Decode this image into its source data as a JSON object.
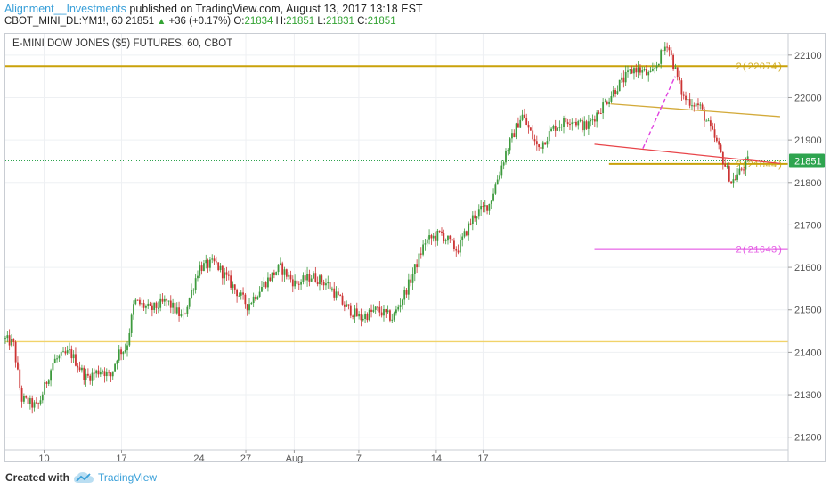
{
  "header": {
    "author": "Alignment__Investments",
    "published_text": "published on TradingView.com, August 13, 2017 13:18 EST",
    "symbol": "CBOT_MINI_DL:YM1!, 60",
    "last": "21851",
    "change": "+36 (+0.17%)",
    "o_label": "O:",
    "o_value": "21834",
    "h_label": "H:",
    "h_value": "21851",
    "l_label": "L:",
    "l_value": "21831",
    "c_label": "C:",
    "c_value": "21851"
  },
  "subtitle": "E-MINI DOW JONES ($5) FUTURES, 60, CBOT",
  "footer": {
    "created_with": "Created with",
    "brand": "TradingView",
    "logo_icon": "tradingview-cloud-icon"
  },
  "colors": {
    "up_candle": "#3d9a3d",
    "down_candle": "#cc3333",
    "horizontal_gold": "#caa20a",
    "horizontal_light": "#f1d36a",
    "magenta": "#e040e0",
    "trend_red": "#e8454a",
    "trend_gold": "#d3aa3a",
    "price_tag": "#2ea44f",
    "grid": "#eef0f3"
  },
  "chart_data": {
    "type": "candlestick",
    "title": "E-MINI DOW JONES ($5) FUTURES, 60, CBOT",
    "y_axis": {
      "position": "right",
      "ylim": [
        21170,
        22150
      ],
      "ticks": [
        21200,
        21300,
        21400,
        21500,
        21600,
        21700,
        21800,
        21900,
        22000,
        22100
      ]
    },
    "x_axis": {
      "tick_labels": [
        "10",
        "17",
        "24",
        "27",
        "Aug",
        "7",
        "14",
        "17"
      ]
    },
    "grid": true,
    "current_price": {
      "value": 21851,
      "label": "21851"
    },
    "series_path": [
      [
        0.0,
        21430
      ],
      [
        0.5,
        21420
      ],
      [
        1.0,
        21290
      ],
      [
        2.0,
        21270
      ],
      [
        3.0,
        21380
      ],
      [
        4.0,
        21400
      ],
      [
        5.0,
        21340
      ],
      [
        6.0,
        21360
      ],
      [
        6.5,
        21340
      ],
      [
        7.0,
        21400
      ],
      [
        7.5,
        21410
      ],
      [
        8.0,
        21520
      ],
      [
        9.0,
        21500
      ],
      [
        10.0,
        21520
      ],
      [
        11.0,
        21480
      ],
      [
        12.0,
        21600
      ],
      [
        13.0,
        21610
      ],
      [
        14.0,
        21560
      ],
      [
        15.0,
        21510
      ],
      [
        16.0,
        21560
      ],
      [
        17.0,
        21600
      ],
      [
        18.0,
        21560
      ],
      [
        19.0,
        21580
      ],
      [
        20.0,
        21560
      ],
      [
        21.0,
        21510
      ],
      [
        22.0,
        21480
      ],
      [
        23.0,
        21500
      ],
      [
        24.0,
        21480
      ],
      [
        25.0,
        21560
      ],
      [
        26.0,
        21660
      ],
      [
        27.0,
        21680
      ],
      [
        28.0,
        21640
      ],
      [
        29.0,
        21720
      ],
      [
        30.0,
        21750
      ],
      [
        31.0,
        21870
      ],
      [
        32.0,
        21960
      ],
      [
        33.0,
        21880
      ],
      [
        34.0,
        21930
      ],
      [
        35.0,
        21950
      ],
      [
        36.0,
        21930
      ],
      [
        37.0,
        21980
      ],
      [
        38.0,
        22030
      ],
      [
        39.0,
        22070
      ],
      [
        40.0,
        22050
      ],
      [
        41.0,
        22130
      ],
      [
        42.0,
        22000
      ],
      [
        43.0,
        21980
      ],
      [
        44.0,
        21900
      ],
      [
        45.0,
        21800
      ],
      [
        46.0,
        21850
      ]
    ],
    "horizontal_lines": [
      {
        "value": 22074,
        "label": "2(22074)",
        "color": "#caa20a"
      },
      {
        "value": 21844,
        "label": "2(21844)",
        "color": "#caa20a"
      },
      {
        "value": 21643,
        "label": "2(21643)",
        "color": "#e040e0"
      },
      {
        "value": 21425,
        "label": "",
        "color": "#f1d36a"
      }
    ],
    "trend_lines": [
      {
        "from": [
          37.5,
          21985
        ],
        "to": [
          48.0,
          21955
        ],
        "color": "#d3aa3a"
      },
      {
        "from": [
          36.5,
          21890
        ],
        "to": [
          48.0,
          21845
        ],
        "color": "#e8454a"
      }
    ],
    "dashed_lines": [
      {
        "from": [
          39.5,
          21880
        ],
        "to": [
          41.5,
          22050
        ],
        "color": "#e040e0"
      }
    ],
    "price_line": {
      "value": 21851
    }
  }
}
